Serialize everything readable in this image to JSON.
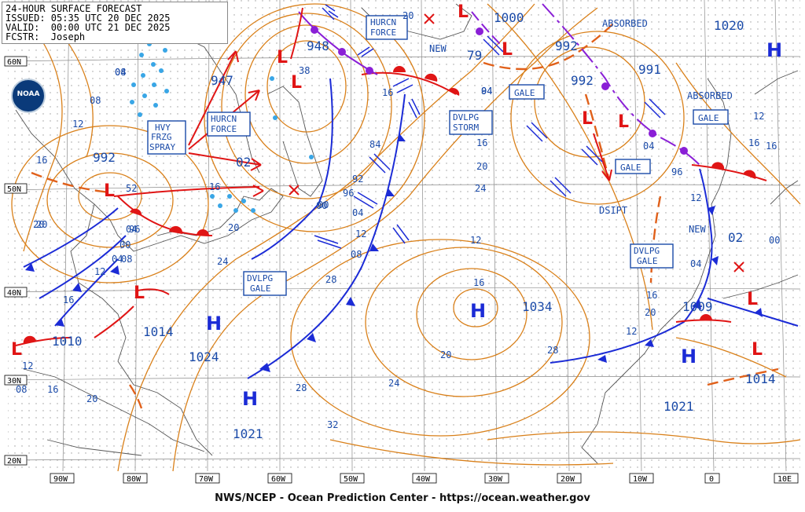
{
  "header": {
    "title": "24-HOUR SURFACE FORECAST",
    "issued": "ISSUED: 05:35 UTC 20 DEC 2025",
    "valid": "VALID:  00:00 UTC 21 DEC 2025",
    "forecaster": "FCSTR:  Joseph"
  },
  "logo": {
    "label": "NOAA",
    "icon": "noaa-logo-icon"
  },
  "footer": "NWS/NCEP - Ocean Prediction Center - https://ocean.weather.gov",
  "lat_labels": [
    "60N",
    "50N",
    "40N",
    "30N",
    "20N"
  ],
  "lon_labels": [
    "90W",
    "80W",
    "70W",
    "60W",
    "50W",
    "40W",
    "30W",
    "20W",
    "10W",
    "0",
    "10E"
  ],
  "pressure_centers": [
    {
      "type": "H",
      "value": "1024"
    },
    {
      "type": "H",
      "value": "1021"
    },
    {
      "type": "H",
      "value": "1034"
    },
    {
      "type": "H",
      "value": "1021"
    },
    {
      "type": "H",
      "value": "1020"
    },
    {
      "type": "L",
      "value": "992"
    },
    {
      "type": "L",
      "value": "1010"
    },
    {
      "type": "L",
      "value": "1014"
    },
    {
      "type": "L",
      "value": "948"
    },
    {
      "type": "L",
      "value": "947"
    },
    {
      "type": "L",
      "value": "1000"
    },
    {
      "type": "L",
      "value": "992"
    },
    {
      "type": "L",
      "value": "992"
    },
    {
      "type": "L",
      "value": "991"
    },
    {
      "type": "L",
      "value": "1009"
    },
    {
      "type": "L",
      "value": "1014"
    },
    {
      "type": "L",
      "value": "02"
    },
    {
      "type": "L",
      "value": "02"
    }
  ],
  "warning_boxes": [
    "HURCN FORCE",
    "HURCN FORCE",
    "HVY FRZG SPRAY",
    "DVLPG STORM",
    "GALE",
    "GALE",
    "GALE",
    "DVLPG GALE",
    "DVLPG GALE"
  ],
  "annotations": [
    "ABSORBED",
    "ABSORBED",
    "NEW",
    "NEW",
    "DSIPT",
    "79"
  ],
  "isobar_labels": [
    "04",
    "08",
    "12",
    "16",
    "20",
    "16",
    "20",
    "12",
    "16",
    "20",
    "24",
    "28",
    "32",
    "28",
    "24",
    "20",
    "16",
    "12",
    "16",
    "20",
    "24",
    "28",
    "04",
    "00",
    "04",
    "08",
    "12",
    "16",
    "20",
    "92",
    "96",
    "00",
    "04",
    "08",
    "12",
    "16",
    "84",
    "38",
    "52",
    "96",
    "00",
    "04",
    "08",
    "16",
    "12",
    "20",
    "16",
    "12",
    "20",
    "94",
    "04",
    "96",
    "00",
    "16",
    "12",
    "04",
    "08"
  ],
  "colors": {
    "isobar": "#d9801a",
    "front_cold": "#1b2bd6",
    "front_warm": "#e01515",
    "occluded": "#8a1fd6",
    "grid": "#777777",
    "label_blue": "#1a4aa8",
    "ice": "#39a6e6"
  }
}
